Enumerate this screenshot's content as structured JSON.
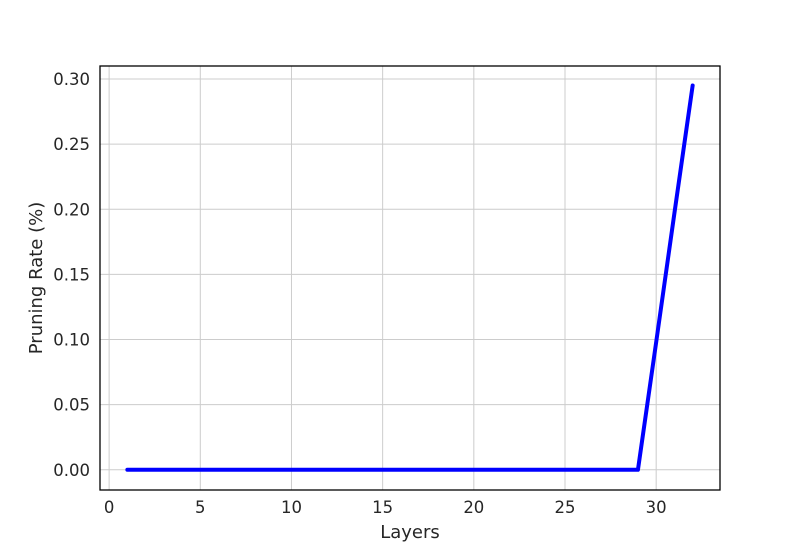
{
  "chart_data": {
    "type": "line",
    "title": "",
    "xlabel": "Layers",
    "ylabel": "Pruning Rate (%)",
    "xlim": [
      -0.5,
      33.5
    ],
    "ylim": [
      -0.0155,
      0.31
    ],
    "x_ticks": [
      0,
      5,
      10,
      15,
      20,
      25,
      30
    ],
    "x_tick_labels": [
      "0",
      "5",
      "10",
      "15",
      "20",
      "25",
      "30"
    ],
    "y_ticks": [
      0.0,
      0.05,
      0.1,
      0.15,
      0.2,
      0.25,
      0.3
    ],
    "y_tick_labels": [
      "0.00",
      "0.05",
      "0.10",
      "0.15",
      "0.20",
      "0.25",
      "0.30"
    ],
    "grid": true,
    "legend": null,
    "series": [
      {
        "color": "#0000ff",
        "x": [
          1,
          2,
          3,
          4,
          5,
          6,
          7,
          8,
          9,
          10,
          11,
          12,
          13,
          14,
          15,
          16,
          17,
          18,
          19,
          20,
          21,
          22,
          23,
          24,
          25,
          26,
          27,
          28,
          29,
          30,
          31,
          32
        ],
        "y": [
          0,
          0,
          0,
          0,
          0,
          0,
          0,
          0,
          0,
          0,
          0,
          0,
          0,
          0,
          0,
          0,
          0,
          0,
          0,
          0,
          0,
          0,
          0,
          0,
          0,
          0,
          0,
          0,
          0,
          0.098,
          0.197,
          0.295
        ]
      }
    ]
  }
}
